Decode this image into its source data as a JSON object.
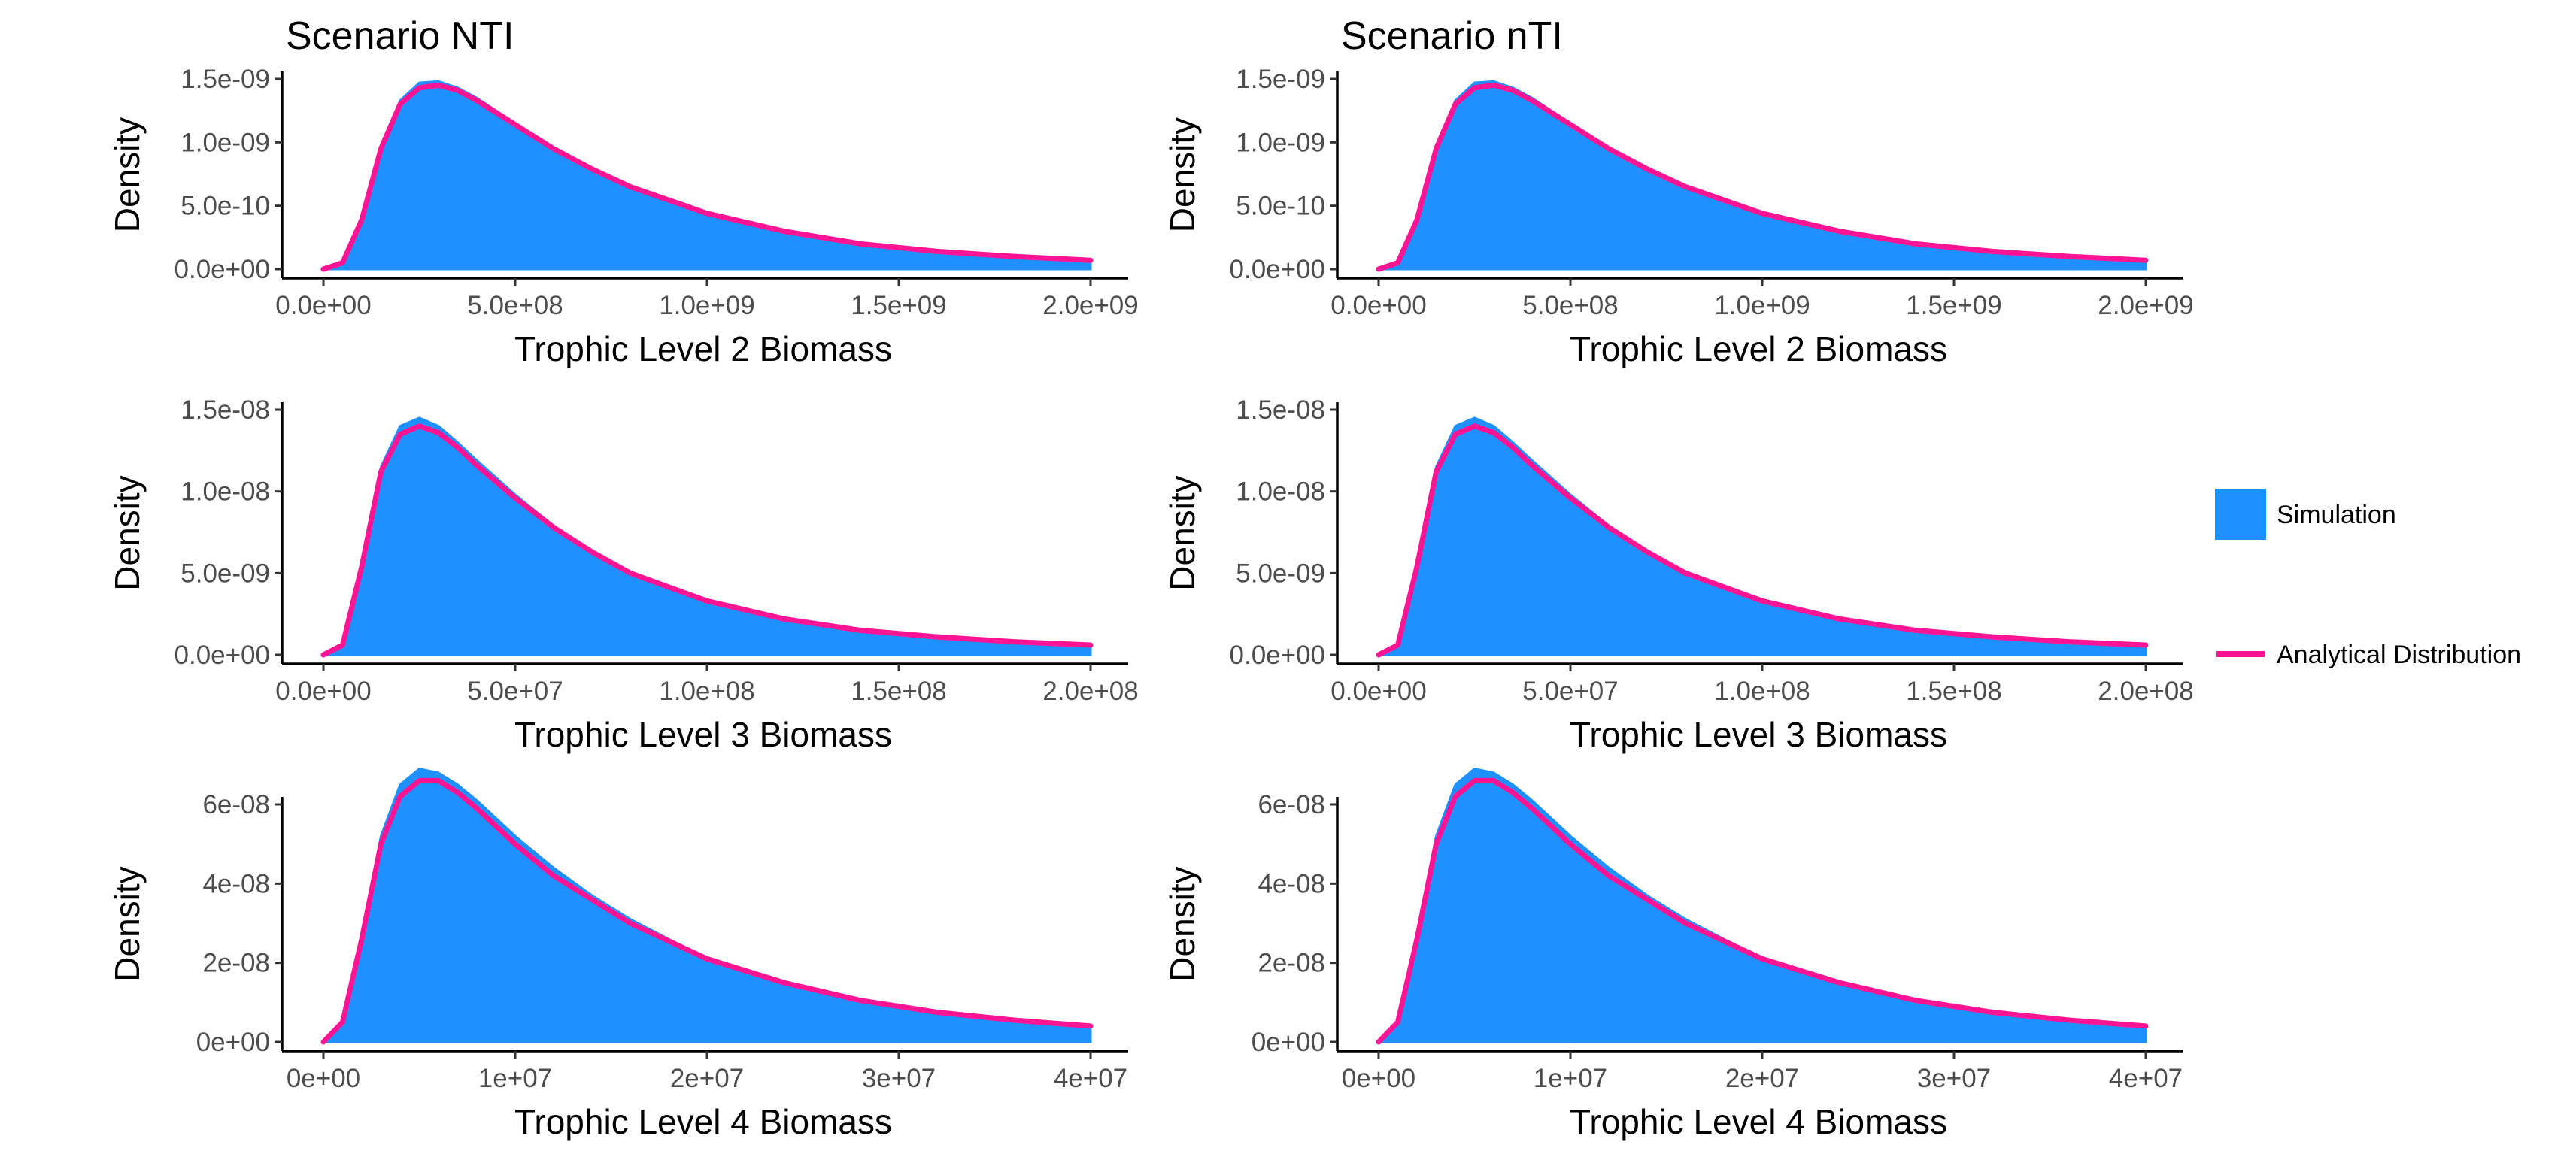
{
  "colors": {
    "simulation": "#1E90FF",
    "analytical": "#FF1493",
    "axis": "#000000",
    "tick_text": "#4d4d4d"
  },
  "legend": {
    "placement": "right",
    "items": [
      {
        "label": "Simulation",
        "key": "simulation"
      },
      {
        "label": "Analytical Distribution",
        "key": "analytical"
      }
    ]
  },
  "chart_data": [
    {
      "type": "area",
      "title": "Scenario NTI",
      "xlabel": "Trophic Level 2 Biomass",
      "ylabel": "Density",
      "xlim": [
        0,
        2000000000
      ],
      "ylim": [
        0,
        1.5e-09
      ],
      "xticks": [
        0,
        500000000,
        1000000000,
        1500000000,
        2000000000
      ],
      "xtick_labels": [
        "0.0e+00",
        "5.0e+08",
        "1.0e+09",
        "1.5e+09",
        "2.0e+09"
      ],
      "yticks": [
        0,
        5e-10,
        1e-09,
        1.5e-09
      ],
      "ytick_labels": [
        "0.0e+00",
        "5.0e-10",
        "1.0e-09",
        "1.5e-09"
      ],
      "series": [
        {
          "name": "Simulation",
          "x": [
            0,
            50000000,
            100000000,
            150000000,
            200000000,
            250000000,
            300000000,
            350000000,
            400000000,
            500000000,
            600000000,
            700000000,
            800000000,
            1000000000,
            1200000000,
            1400000000,
            1600000000,
            1800000000,
            2000000000
          ],
          "y": [
            0,
            5e-11,
            4e-10,
            9.8e-10,
            1.33e-09,
            1.47e-09,
            1.48e-09,
            1.43e-09,
            1.35e-09,
            1.15e-09,
            9.6e-10,
            8e-10,
            6.6e-10,
            4.4e-10,
            2.9e-10,
            1.9e-10,
            1.3e-10,
            9e-11,
            6e-11
          ]
        },
        {
          "name": "Analytical Distribution",
          "x": [
            0,
            50000000,
            100000000,
            150000000,
            200000000,
            250000000,
            300000000,
            350000000,
            400000000,
            500000000,
            600000000,
            700000000,
            800000000,
            1000000000,
            1200000000,
            1400000000,
            1600000000,
            1800000000,
            2000000000
          ],
          "y": [
            0,
            5e-11,
            3.9e-10,
            9.5e-10,
            1.3e-09,
            1.43e-09,
            1.45e-09,
            1.41e-09,
            1.33e-09,
            1.14e-09,
            9.5e-10,
            7.9e-10,
            6.5e-10,
            4.4e-10,
            3e-10,
            2e-10,
            1.4e-10,
            1e-10,
            7e-11
          ]
        }
      ]
    },
    {
      "type": "area",
      "title": "Scenario nTI",
      "xlabel": "Trophic Level 2 Biomass",
      "ylabel": "Density",
      "xlim": [
        0,
        2000000000
      ],
      "ylim": [
        0,
        1.5e-09
      ],
      "xticks": [
        0,
        500000000,
        1000000000,
        1500000000,
        2000000000
      ],
      "xtick_labels": [
        "0.0e+00",
        "5.0e+08",
        "1.0e+09",
        "1.5e+09",
        "2.0e+09"
      ],
      "yticks": [
        0,
        5e-10,
        1e-09,
        1.5e-09
      ],
      "ytick_labels": [
        "0.0e+00",
        "5.0e-10",
        "1.0e-09",
        "1.5e-09"
      ],
      "series": [
        {
          "name": "Simulation",
          "x": [
            0,
            50000000,
            100000000,
            150000000,
            200000000,
            250000000,
            300000000,
            350000000,
            400000000,
            500000000,
            600000000,
            700000000,
            800000000,
            1000000000,
            1200000000,
            1400000000,
            1600000000,
            1800000000,
            2000000000
          ],
          "y": [
            0,
            5e-11,
            4e-10,
            9.8e-10,
            1.33e-09,
            1.47e-09,
            1.48e-09,
            1.43e-09,
            1.35e-09,
            1.15e-09,
            9.6e-10,
            8e-10,
            6.6e-10,
            4.4e-10,
            2.9e-10,
            1.9e-10,
            1.3e-10,
            9e-11,
            6e-11
          ]
        },
        {
          "name": "Analytical Distribution",
          "x": [
            0,
            50000000,
            100000000,
            150000000,
            200000000,
            250000000,
            300000000,
            350000000,
            400000000,
            500000000,
            600000000,
            700000000,
            800000000,
            1000000000,
            1200000000,
            1400000000,
            1600000000,
            1800000000,
            2000000000
          ],
          "y": [
            0,
            5e-11,
            3.9e-10,
            9.5e-10,
            1.3e-09,
            1.43e-09,
            1.45e-09,
            1.41e-09,
            1.33e-09,
            1.14e-09,
            9.5e-10,
            7.9e-10,
            6.5e-10,
            4.4e-10,
            3e-10,
            2e-10,
            1.4e-10,
            1e-10,
            7e-11
          ]
        }
      ]
    },
    {
      "type": "area",
      "title": "",
      "xlabel": "Trophic Level 3 Biomass",
      "ylabel": "Density",
      "xlim": [
        0,
        200000000
      ],
      "ylim": [
        0,
        1.5e-08
      ],
      "xticks": [
        0,
        50000000,
        100000000,
        150000000,
        200000000
      ],
      "xtick_labels": [
        "0.0e+00",
        "5.0e+07",
        "1.0e+08",
        "1.5e+08",
        "2.0e+08"
      ],
      "yticks": [
        0,
        5e-09,
        1e-08,
        1.5e-08
      ],
      "ytick_labels": [
        "0.0e+00",
        "5.0e-09",
        "1.0e-08",
        "1.5e-08"
      ],
      "series": [
        {
          "name": "Simulation",
          "x": [
            0,
            5000000,
            10000000,
            15000000,
            20000000,
            25000000,
            30000000,
            35000000,
            40000000,
            50000000,
            60000000,
            70000000,
            80000000,
            100000000,
            120000000,
            140000000,
            160000000,
            180000000,
            200000000
          ],
          "y": [
            0,
            6e-10,
            5.5e-09,
            1.15e-08,
            1.4e-08,
            1.45e-08,
            1.4e-08,
            1.3e-08,
            1.19e-08,
            9.8e-09,
            7.9e-09,
            6.3e-09,
            5e-09,
            3.2e-09,
            2.1e-09,
            1.4e-09,
            1e-09,
            7e-10,
            5e-10
          ]
        },
        {
          "name": "Analytical Distribution",
          "x": [
            0,
            5000000,
            10000000,
            15000000,
            20000000,
            25000000,
            30000000,
            35000000,
            40000000,
            50000000,
            60000000,
            70000000,
            80000000,
            100000000,
            120000000,
            140000000,
            160000000,
            180000000,
            200000000
          ],
          "y": [
            0,
            6e-10,
            5.4e-09,
            1.12e-08,
            1.35e-08,
            1.4e-08,
            1.36e-08,
            1.27e-08,
            1.16e-08,
            9.6e-09,
            7.8e-09,
            6.3e-09,
            5e-09,
            3.3e-09,
            2.2e-09,
            1.5e-09,
            1.1e-09,
            8e-10,
            6e-10
          ]
        }
      ]
    },
    {
      "type": "area",
      "title": "",
      "xlabel": "Trophic Level 3 Biomass",
      "ylabel": "Density",
      "xlim": [
        0,
        200000000
      ],
      "ylim": [
        0,
        1.5e-08
      ],
      "xticks": [
        0,
        50000000,
        100000000,
        150000000,
        200000000
      ],
      "xtick_labels": [
        "0.0e+00",
        "5.0e+07",
        "1.0e+08",
        "1.5e+08",
        "2.0e+08"
      ],
      "yticks": [
        0,
        5e-09,
        1e-08,
        1.5e-08
      ],
      "ytick_labels": [
        "0.0e+00",
        "5.0e-09",
        "1.0e-08",
        "1.5e-08"
      ],
      "series": [
        {
          "name": "Simulation",
          "x": [
            0,
            5000000,
            10000000,
            15000000,
            20000000,
            25000000,
            30000000,
            35000000,
            40000000,
            50000000,
            60000000,
            70000000,
            80000000,
            100000000,
            120000000,
            140000000,
            160000000,
            180000000,
            200000000
          ],
          "y": [
            0,
            6e-10,
            5.5e-09,
            1.15e-08,
            1.4e-08,
            1.45e-08,
            1.4e-08,
            1.3e-08,
            1.19e-08,
            9.8e-09,
            7.9e-09,
            6.3e-09,
            5e-09,
            3.2e-09,
            2.1e-09,
            1.4e-09,
            1e-09,
            7e-10,
            5e-10
          ]
        },
        {
          "name": "Analytical Distribution",
          "x": [
            0,
            5000000,
            10000000,
            15000000,
            20000000,
            25000000,
            30000000,
            35000000,
            40000000,
            50000000,
            60000000,
            70000000,
            80000000,
            100000000,
            120000000,
            140000000,
            160000000,
            180000000,
            200000000
          ],
          "y": [
            0,
            6e-10,
            5.4e-09,
            1.12e-08,
            1.35e-08,
            1.4e-08,
            1.36e-08,
            1.27e-08,
            1.16e-08,
            9.6e-09,
            7.8e-09,
            6.3e-09,
            5e-09,
            3.3e-09,
            2.2e-09,
            1.5e-09,
            1.1e-09,
            8e-10,
            6e-10
          ]
        }
      ]
    },
    {
      "type": "area",
      "title": "",
      "xlabel": "Trophic Level 4 Biomass",
      "ylabel": "Density",
      "xlim": [
        0,
        40000000
      ],
      "ylim": [
        0,
        7.2e-08
      ],
      "xticks": [
        0,
        10000000,
        20000000,
        30000000,
        40000000
      ],
      "xtick_labels": [
        "0e+00",
        "1e+07",
        "2e+07",
        "3e+07",
        "4e+07"
      ],
      "yticks": [
        0,
        2e-08,
        4e-08,
        6e-08
      ],
      "ytick_labels": [
        "0e+00",
        "2e-08",
        "4e-08",
        "6e-08"
      ],
      "series": [
        {
          "name": "Simulation",
          "x": [
            0,
            1000000,
            2000000,
            3000000,
            4000000,
            5000000,
            6000000,
            7000000,
            8000000,
            10000000,
            12000000,
            14000000,
            16000000,
            20000000,
            24000000,
            28000000,
            32000000,
            36000000,
            40000000
          ],
          "y": [
            0,
            5e-09,
            2.7e-08,
            5.2e-08,
            6.5e-08,
            6.9e-08,
            6.8e-08,
            6.5e-08,
            6.1e-08,
            5.2e-08,
            4.4e-08,
            3.7e-08,
            3.1e-08,
            2.1e-08,
            1.45e-08,
            1e-08,
            7e-09,
            5e-09,
            3.5e-09
          ]
        },
        {
          "name": "Analytical Distribution",
          "x": [
            0,
            1000000,
            2000000,
            3000000,
            4000000,
            5000000,
            6000000,
            7000000,
            8000000,
            10000000,
            12000000,
            14000000,
            16000000,
            20000000,
            24000000,
            28000000,
            32000000,
            36000000,
            40000000
          ],
          "y": [
            0,
            5e-09,
            2.6e-08,
            5e-08,
            6.2e-08,
            6.6e-08,
            6.6e-08,
            6.3e-08,
            5.9e-08,
            5e-08,
            4.2e-08,
            3.6e-08,
            3e-08,
            2.1e-08,
            1.5e-08,
            1.05e-08,
            7.5e-09,
            5.5e-09,
            4e-09
          ]
        }
      ]
    },
    {
      "type": "area",
      "title": "",
      "xlabel": "Trophic Level 4 Biomass",
      "ylabel": "Density",
      "xlim": [
        0,
        40000000
      ],
      "ylim": [
        0,
        7.2e-08
      ],
      "xticks": [
        0,
        10000000,
        20000000,
        30000000,
        40000000
      ],
      "xtick_labels": [
        "0e+00",
        "1e+07",
        "2e+07",
        "3e+07",
        "4e+07"
      ],
      "yticks": [
        0,
        2e-08,
        4e-08,
        6e-08
      ],
      "ytick_labels": [
        "0e+00",
        "2e-08",
        "4e-08",
        "6e-08"
      ],
      "series": [
        {
          "name": "Simulation",
          "x": [
            0,
            1000000,
            2000000,
            3000000,
            4000000,
            5000000,
            6000000,
            7000000,
            8000000,
            10000000,
            12000000,
            14000000,
            16000000,
            20000000,
            24000000,
            28000000,
            32000000,
            36000000,
            40000000
          ],
          "y": [
            0,
            5e-09,
            2.7e-08,
            5.2e-08,
            6.5e-08,
            6.9e-08,
            6.8e-08,
            6.5e-08,
            6.1e-08,
            5.2e-08,
            4.4e-08,
            3.7e-08,
            3.1e-08,
            2.1e-08,
            1.45e-08,
            1e-08,
            7e-09,
            5e-09,
            3.5e-09
          ]
        },
        {
          "name": "Analytical Distribution",
          "x": [
            0,
            1000000,
            2000000,
            3000000,
            4000000,
            5000000,
            6000000,
            7000000,
            8000000,
            10000000,
            12000000,
            14000000,
            16000000,
            20000000,
            24000000,
            28000000,
            32000000,
            36000000,
            40000000
          ],
          "y": [
            0,
            5e-09,
            2.6e-08,
            5e-08,
            6.2e-08,
            6.6e-08,
            6.6e-08,
            6.3e-08,
            5.9e-08,
            5e-08,
            4.2e-08,
            3.6e-08,
            3e-08,
            2.1e-08,
            1.5e-08,
            1.05e-08,
            7.5e-09,
            5.5e-09,
            4e-09
          ]
        }
      ]
    }
  ]
}
